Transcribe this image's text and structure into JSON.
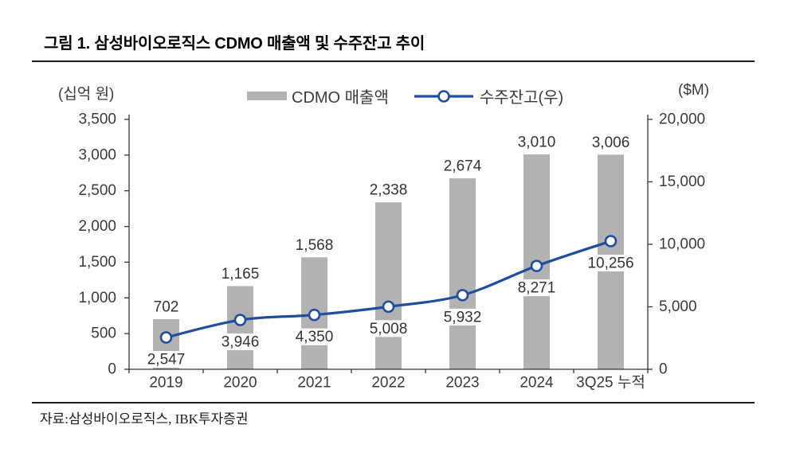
{
  "header": {
    "title": "그림 1. 삼성바이오로직스 CDMO 매출액 및 수주잔고 추이"
  },
  "footer": {
    "source": "자료:삼성바이오로직스, IBK투자증권"
  },
  "legend": {
    "items": [
      {
        "label": "CDMO 매출액",
        "type": "bar",
        "color": "#b2b2b2"
      },
      {
        "label": "수주잔고(우)",
        "type": "line",
        "color": "#1f4e9f"
      }
    ]
  },
  "chart_data": {
    "type": "bar",
    "subtype": "bar-line-combo",
    "title": "그림 1. 삼성바이오로직스 CDMO 매출액 및 수주잔고 추이",
    "categories": [
      "2019",
      "2020",
      "2021",
      "2022",
      "2023",
      "2024",
      "3Q25 누적"
    ],
    "series": [
      {
        "name": "CDMO 매출액",
        "type": "bar",
        "axis": "left",
        "color": "#b2b2b2",
        "values": [
          702,
          1165,
          1568,
          2338,
          2674,
          3010,
          3006
        ],
        "labels": [
          "702",
          "1,165",
          "1,568",
          "2,338",
          "2,674",
          "3,010",
          "3,006"
        ]
      },
      {
        "name": "수주잔고(우)",
        "type": "line",
        "axis": "right",
        "color": "#1f4e9f",
        "marker": "circle-white-fill",
        "values": [
          2547,
          3946,
          4350,
          5008,
          5932,
          8271,
          10256
        ],
        "labels": [
          "2,547",
          "3,946",
          "4,350",
          "5,008",
          "5,932",
          "8,271",
          "10,256"
        ]
      }
    ],
    "left_axis": {
      "unit": "(십억 원)",
      "min": 0,
      "max": 3500,
      "step": 500,
      "ticks": [
        "0",
        "500",
        "1,000",
        "1,500",
        "2,000",
        "2,500",
        "3,000",
        "3,500"
      ]
    },
    "right_axis": {
      "unit": "($M)",
      "min": 0,
      "max": 20000,
      "step": 5000,
      "ticks": [
        "0",
        "5,000",
        "10,000",
        "15,000",
        "20,000"
      ]
    },
    "grid": false,
    "legend_position": "top-center"
  }
}
